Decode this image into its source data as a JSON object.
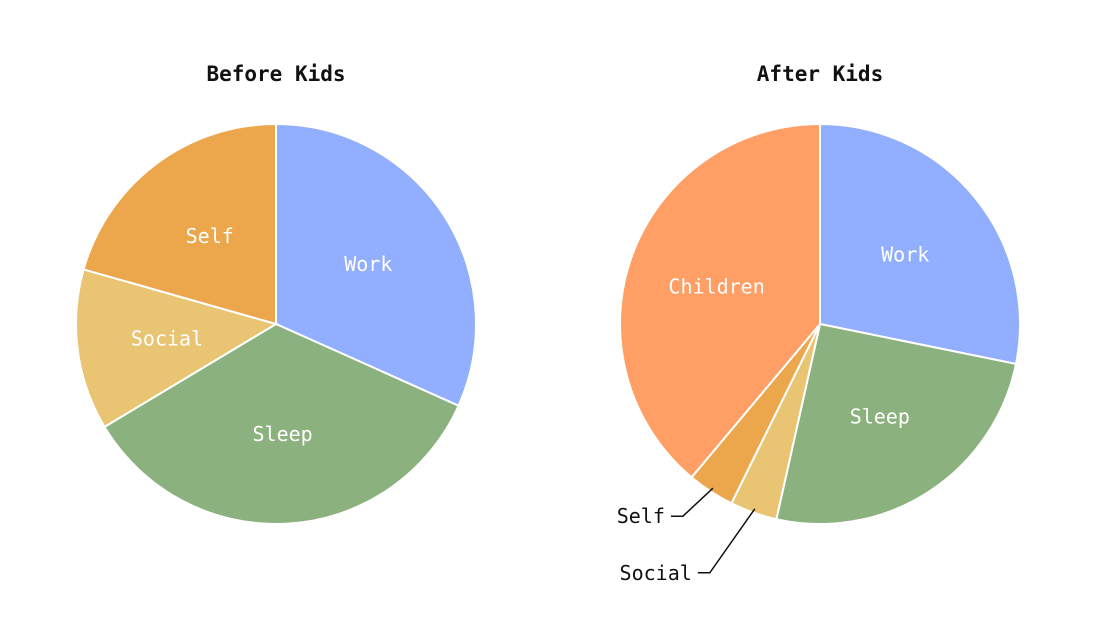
{
  "chart_data": [
    {
      "type": "pie",
      "title": "Before Kids",
      "slices": [
        {
          "label": "Work",
          "value": 31.7,
          "color": "#92AEFF"
        },
        {
          "label": "Sleep",
          "value": 34.7,
          "color": "#8BB17F"
        },
        {
          "label": "Social",
          "value": 13.0,
          "color": "#E9C472"
        },
        {
          "label": "Self",
          "value": 20.6,
          "color": "#ECA74C"
        }
      ]
    },
    {
      "type": "pie",
      "title": "After Kids",
      "slices": [
        {
          "label": "Work",
          "value": 28.2,
          "color": "#92AEFF"
        },
        {
          "label": "Sleep",
          "value": 25.3,
          "color": "#8BB17F"
        },
        {
          "label": "Social",
          "value": 3.8,
          "color": "#E9C472"
        },
        {
          "label": "Self",
          "value": 3.8,
          "color": "#ECA74C"
        },
        {
          "label": "Children",
          "value": 38.9,
          "color": "#FF9E65"
        }
      ]
    }
  ]
}
